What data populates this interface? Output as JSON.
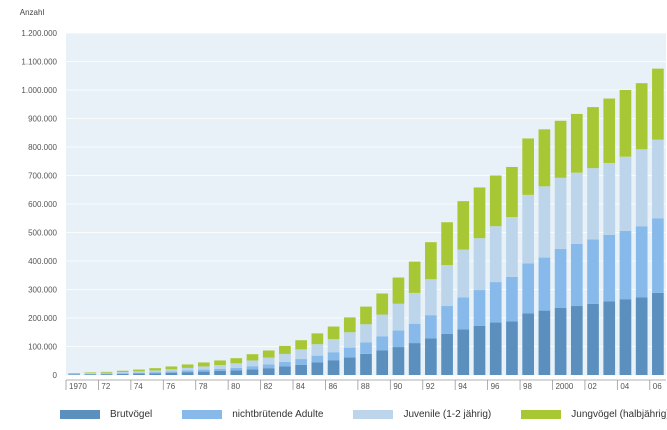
{
  "chart_data": {
    "type": "bar",
    "stacked": true,
    "ylabel": "Anzahl",
    "xlabel": "",
    "ylim": [
      0,
      1200000
    ],
    "grid": true,
    "y_ticks": [
      {
        "value": 0,
        "label": "0"
      },
      {
        "value": 100000,
        "label": "100.000"
      },
      {
        "value": 200000,
        "label": "200.000"
      },
      {
        "value": 300000,
        "label": "300.000"
      },
      {
        "value": 400000,
        "label": "400.000"
      },
      {
        "value": 500000,
        "label": "500.000"
      },
      {
        "value": 600000,
        "label": "600.000"
      },
      {
        "value": 700000,
        "label": "700.000"
      },
      {
        "value": 800000,
        "label": "800.000"
      },
      {
        "value": 900000,
        "label": "900.000"
      },
      {
        "value": 1000000,
        "label": "1.000.000"
      },
      {
        "value": 1100000,
        "label": "1.100.000"
      },
      {
        "value": 1200000,
        "label": "1.200.000"
      }
    ],
    "categories": [
      "1970",
      "1971",
      "1972",
      "1973",
      "1974",
      "1975",
      "1976",
      "1977",
      "1978",
      "1979",
      "1980",
      "1981",
      "1982",
      "1983",
      "1984",
      "1985",
      "1986",
      "1987",
      "1988",
      "1989",
      "1990",
      "1991",
      "1992",
      "1993",
      "1994",
      "1995",
      "1996",
      "1997",
      "1998",
      "1999",
      "2000",
      "2001",
      "2002",
      "2003",
      "2004",
      "2005",
      "2006"
    ],
    "x_tick_labels": [
      {
        "category": "1970",
        "label": "1970"
      },
      {
        "category": "1972",
        "label": "72"
      },
      {
        "category": "1974",
        "label": "74"
      },
      {
        "category": "1976",
        "label": "76"
      },
      {
        "category": "1978",
        "label": "78"
      },
      {
        "category": "1980",
        "label": "80"
      },
      {
        "category": "1982",
        "label": "82"
      },
      {
        "category": "1984",
        "label": "84"
      },
      {
        "category": "1986",
        "label": "86"
      },
      {
        "category": "1988",
        "label": "88"
      },
      {
        "category": "1990",
        "label": "90"
      },
      {
        "category": "1992",
        "label": "92"
      },
      {
        "category": "1994",
        "label": "94"
      },
      {
        "category": "1996",
        "label": "96"
      },
      {
        "category": "1998",
        "label": "98"
      },
      {
        "category": "2000",
        "label": "2000"
      },
      {
        "category": "2002",
        "label": "02"
      },
      {
        "category": "2004",
        "label": "04"
      },
      {
        "category": "2006",
        "label": "06"
      }
    ],
    "series": [
      {
        "name": "Brutvögel",
        "color": "#5a8fbe",
        "values": [
          2000,
          2500,
          3000,
          4000,
          5000,
          6000,
          8000,
          10000,
          12000,
          14000,
          16000,
          20000,
          24000,
          30000,
          36000,
          44000,
          52000,
          62000,
          74000,
          86000,
          98000,
          112000,
          128000,
          144000,
          160000,
          172000,
          184000,
          188000,
          216000,
          226000,
          236000,
          242000,
          250000,
          258000,
          266000,
          272000,
          288000
        ]
      },
      {
        "name": "nichtbrütende Adulte",
        "color": "#87baea",
        "values": [
          1000,
          1500,
          2000,
          2500,
          3000,
          4000,
          5000,
          6000,
          7000,
          8000,
          9000,
          11000,
          13000,
          16000,
          20000,
          24000,
          28000,
          34000,
          40000,
          50000,
          58000,
          68000,
          82000,
          98000,
          112000,
          126000,
          142000,
          156000,
          176000,
          186000,
          206000,
          218000,
          226000,
          234000,
          240000,
          250000,
          262000
        ]
      },
      {
        "name": "Juvenile (1-2 jährig)",
        "color": "#bcd5ea",
        "values": [
          2000,
          2500,
          3000,
          4000,
          5000,
          6000,
          7000,
          9000,
          11000,
          13000,
          16000,
          20000,
          24000,
          28000,
          34000,
          40000,
          46000,
          54000,
          64000,
          76000,
          94000,
          108000,
          126000,
          144000,
          168000,
          182000,
          196000,
          210000,
          240000,
          250000,
          250000,
          250000,
          250000,
          252000,
          260000,
          270000,
          276000
        ]
      },
      {
        "name": "Jungvögel (halbjährig)",
        "color": "#a8c734",
        "values": [
          2000,
          2500,
          3000,
          4500,
          6000,
          8000,
          10000,
          12000,
          14000,
          16000,
          18000,
          22000,
          25000,
          28000,
          32000,
          38000,
          44000,
          52000,
          62000,
          74000,
          92000,
          110000,
          130000,
          150000,
          170000,
          178000,
          178000,
          176000,
          198000,
          200000,
          200000,
          206000,
          214000,
          226000,
          234000,
          232000,
          249000
        ]
      }
    ]
  }
}
